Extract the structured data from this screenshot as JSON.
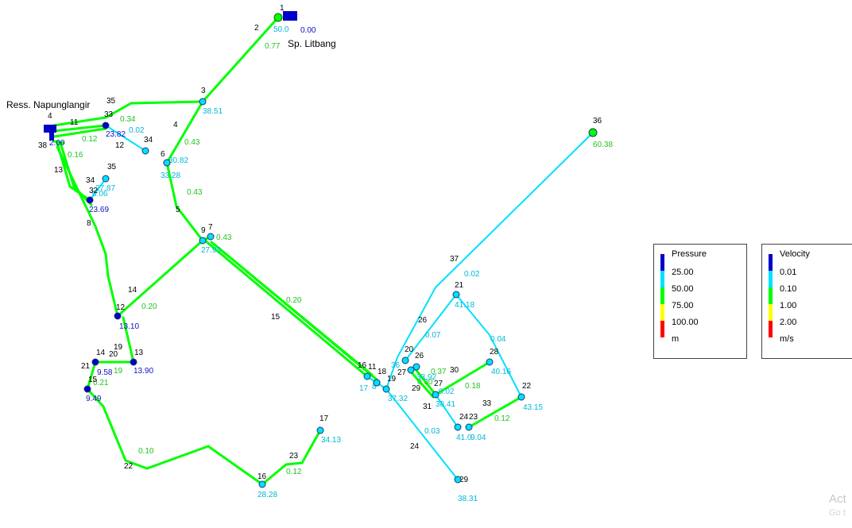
{
  "colors": {
    "level1": "#0000c8",
    "level2": "#00e0ff",
    "level3": "#00ff00",
    "level4": "#ffff00",
    "level5": "#ff0000",
    "green_text": "#22c322",
    "cyan_text": "#00b8d8",
    "blue_text": "#1010c0"
  },
  "titles": {
    "reservoir_label": "Ress. Napunglangir",
    "tank_label": "Sp. Litbang"
  },
  "legend_pressure": {
    "title": "Pressure",
    "entries": [
      "25.00",
      "50.00",
      "75.00",
      "100.00",
      "m"
    ]
  },
  "legend_velocity": {
    "title": "Velocity",
    "entries": [
      "0.01",
      "0.10",
      "1.00",
      "2.00",
      "m/s"
    ]
  },
  "watermark": {
    "line1": "Act",
    "line2": "Go t"
  },
  "network": {
    "pipe_labels": [
      {
        "t": "2",
        "c": "k",
        "name": "pipe-id-2"
      },
      {
        "t": "0.77",
        "c": "g",
        "name": "pipe-velocity-2"
      },
      {
        "t": "35",
        "c": "k",
        "name": "pipe-id-35"
      },
      {
        "t": "4",
        "c": "k",
        "name": "pipe-id-4"
      },
      {
        "t": "0.43",
        "c": "g",
        "name": "pipe-velocity-4"
      },
      {
        "t": "11",
        "c": "k",
        "name": "pipe-id-11"
      },
      {
        "t": "0.34",
        "c": "g",
        "name": "pipe-velocity-35"
      },
      {
        "t": "0.12",
        "c": "g",
        "name": "pipe-velocity-11"
      },
      {
        "t": "0.16",
        "c": "g",
        "name": "pipe-velocity-12"
      },
      {
        "t": "12",
        "c": "k",
        "name": "pipe-id-12"
      },
      {
        "t": "0.02",
        "c": "c",
        "name": "pipe-velocity-34"
      },
      {
        "t": "13",
        "c": "k",
        "name": "pipe-id-13"
      },
      {
        "t": "34",
        "c": "k",
        "name": "pipe-id-34"
      },
      {
        "t": "0.06",
        "c": "c",
        "name": "pipe-velocity-32"
      },
      {
        "t": "0.43",
        "c": "g",
        "name": "pipe-velocity-5"
      },
      {
        "t": "5",
        "c": "k",
        "name": "pipe-id-5"
      },
      {
        "t": "8",
        "c": "k",
        "name": "pipe-id-8"
      },
      {
        "t": "0.43",
        "c": "g",
        "name": "pipe-velocity-7"
      },
      {
        "t": "14",
        "c": "k",
        "name": "pipe-id-14"
      },
      {
        "t": "0.20",
        "c": "g",
        "name": "pipe-velocity-14"
      },
      {
        "t": "0.20",
        "c": "g",
        "name": "pipe-velocity-15"
      },
      {
        "t": "15",
        "c": "k",
        "name": "pipe-id-15"
      },
      {
        "t": "19",
        "c": "k",
        "name": "pipe-id-19"
      },
      {
        "t": "20",
        "c": "k",
        "name": "pipe-id-20"
      },
      {
        "t": "19",
        "c": "g",
        "name": "pipe-velocity-19"
      },
      {
        "t": "0.21",
        "c": "g",
        "name": "pipe-velocity-21"
      },
      {
        "t": "0.10",
        "c": "g",
        "name": "pipe-velocity-22"
      },
      {
        "t": "22",
        "c": "k",
        "name": "pipe-id-22"
      },
      {
        "t": "23",
        "c": "k",
        "name": "pipe-id-23"
      },
      {
        "t": "0.12",
        "c": "g",
        "name": "pipe-velocity-23"
      },
      {
        "t": "37",
        "c": "k",
        "name": "pipe-id-37"
      },
      {
        "t": "0.02",
        "c": "c",
        "name": "pipe-velocity-37"
      },
      {
        "t": "26",
        "c": "k",
        "name": "pipe-id-26"
      },
      {
        "t": "0.07",
        "c": "c",
        "name": "pipe-velocity-26"
      },
      {
        "t": "0.04",
        "c": "c",
        "name": "pipe-velocity-28"
      },
      {
        "t": "30",
        "c": "k",
        "name": "pipe-id-30"
      },
      {
        "t": "0.18",
        "c": "g",
        "name": "pipe-velocity-30"
      },
      {
        "t": "0.37",
        "c": "g",
        "name": "pipe-velocity-27"
      },
      {
        "t": "33",
        "c": "k",
        "name": "pipe-id-33"
      },
      {
        "t": "0.12",
        "c": "g",
        "name": "pipe-velocity-33"
      },
      {
        "t": "0.03",
        "c": "c",
        "name": "pipe-velocity-24"
      },
      {
        "t": "24",
        "c": "k",
        "name": "pipe-id-24"
      },
      {
        "t": "31",
        "c": "k",
        "name": "pipe-id-31"
      },
      {
        "t": "29",
        "c": "k",
        "name": "pipe-id-29"
      },
      {
        "t": "0.30",
        "c": "g",
        "name": "pipe-velocity-29"
      },
      {
        "t": "0.02",
        "c": "c",
        "name": "pipe-velocity-31"
      }
    ],
    "nodes": [
      {
        "id": "1",
        "pressure": "50.0",
        "c": "c",
        "name": "junction-1"
      },
      {
        "id": "3",
        "pressure": "38.51",
        "c": "c",
        "name": "junction-3"
      },
      {
        "id": "33",
        "pressure": "23.82",
        "c": "b",
        "name": "junction-33"
      },
      {
        "id": "34",
        "pressure": "",
        "c": "c",
        "name": "junction-34"
      },
      {
        "id": "6",
        "pressure": "30.82",
        "c": "c",
        "name": "junction-6"
      },
      {
        "id": "",
        "pressure": "33.28",
        "c": "c",
        "name": "junction-6b"
      },
      {
        "id": "35",
        "pressure": "27.87",
        "c": "c",
        "name": "junction-35"
      },
      {
        "id": "32",
        "pressure": "23.69",
        "c": "b",
        "name": "junction-32"
      },
      {
        "id": "9",
        "pressure": "27.93",
        "c": "c",
        "name": "junction-9"
      },
      {
        "id": "7",
        "pressure": "",
        "c": "c",
        "name": "junction-7"
      },
      {
        "id": "12",
        "pressure": "13.10",
        "c": "b",
        "name": "junction-12"
      },
      {
        "id": "13",
        "pressure": "13.90",
        "c": "b",
        "name": "junction-13"
      },
      {
        "id": "14",
        "pressure": "9.58",
        "c": "b",
        "name": "junction-14"
      },
      {
        "id": "15",
        "pressure": "9.49",
        "c": "b",
        "name": "junction-15"
      },
      {
        "id": "16",
        "pressure": "28.28",
        "c": "c",
        "name": "junction-16"
      },
      {
        "id": "17",
        "pressure": "34.13",
        "c": "c",
        "name": "junction-17"
      },
      {
        "id": "36",
        "pressure": "60.38",
        "c": "g",
        "name": "junction-36"
      },
      {
        "id": "21",
        "pressure": "41.18",
        "c": "c",
        "name": "junction-21"
      },
      {
        "id": "20",
        "pressure": "",
        "c": "c",
        "name": "junction-20"
      },
      {
        "id": "26",
        "pressure": "38.92",
        "c": "c",
        "name": "junction-26"
      },
      {
        "id": "27",
        "pressure": "",
        "c": "c",
        "name": "junction-27-mid"
      },
      {
        "id": "27",
        "pressure": "38.41",
        "c": "c",
        "name": "junction-27"
      },
      {
        "id": "28",
        "pressure": "40.16",
        "c": "c",
        "name": "junction-28"
      },
      {
        "id": "22",
        "pressure": "43.15",
        "c": "c",
        "name": "junction-22"
      },
      {
        "id": "24",
        "pressure": "41.0",
        "c": "c",
        "name": "junction-24"
      },
      {
        "id": "23",
        "pressure": "9.04",
        "c": "c",
        "name": "junction-23"
      },
      {
        "id": "29",
        "pressure": "38.31",
        "c": "c",
        "name": "junction-29"
      },
      {
        "id": "16",
        "pressure": "",
        "c": "c",
        "name": "junction-16b"
      },
      {
        "id": "11",
        "pressure": "",
        "c": "c",
        "name": "junction-11"
      },
      {
        "id": "18",
        "pressure": "",
        "c": "c",
        "name": "junction-18"
      },
      {
        "id": "19",
        "pressure": "37.32",
        "c": "c",
        "name": "junction-19"
      }
    ],
    "misc_labels": [
      {
        "t": "4",
        "c": "k",
        "name": "reservoir-id"
      },
      {
        "t": "38",
        "c": "k",
        "name": "node-38-label"
      },
      {
        "t": "2.00",
        "c": "b",
        "name": "reservoir-head"
      },
      {
        "t": "0.00",
        "c": "b",
        "name": "tank-value"
      },
      {
        "t": "21",
        "c": "k",
        "name": "node-21-label-left"
      },
      {
        "t": "8",
        "c": "c",
        "name": "node-8-val"
      },
      {
        "t": "17",
        "c": "c",
        "name": "node-17-label"
      },
      {
        "t": "36",
        "c": "c",
        "name": "node-36-small"
      }
    ]
  }
}
